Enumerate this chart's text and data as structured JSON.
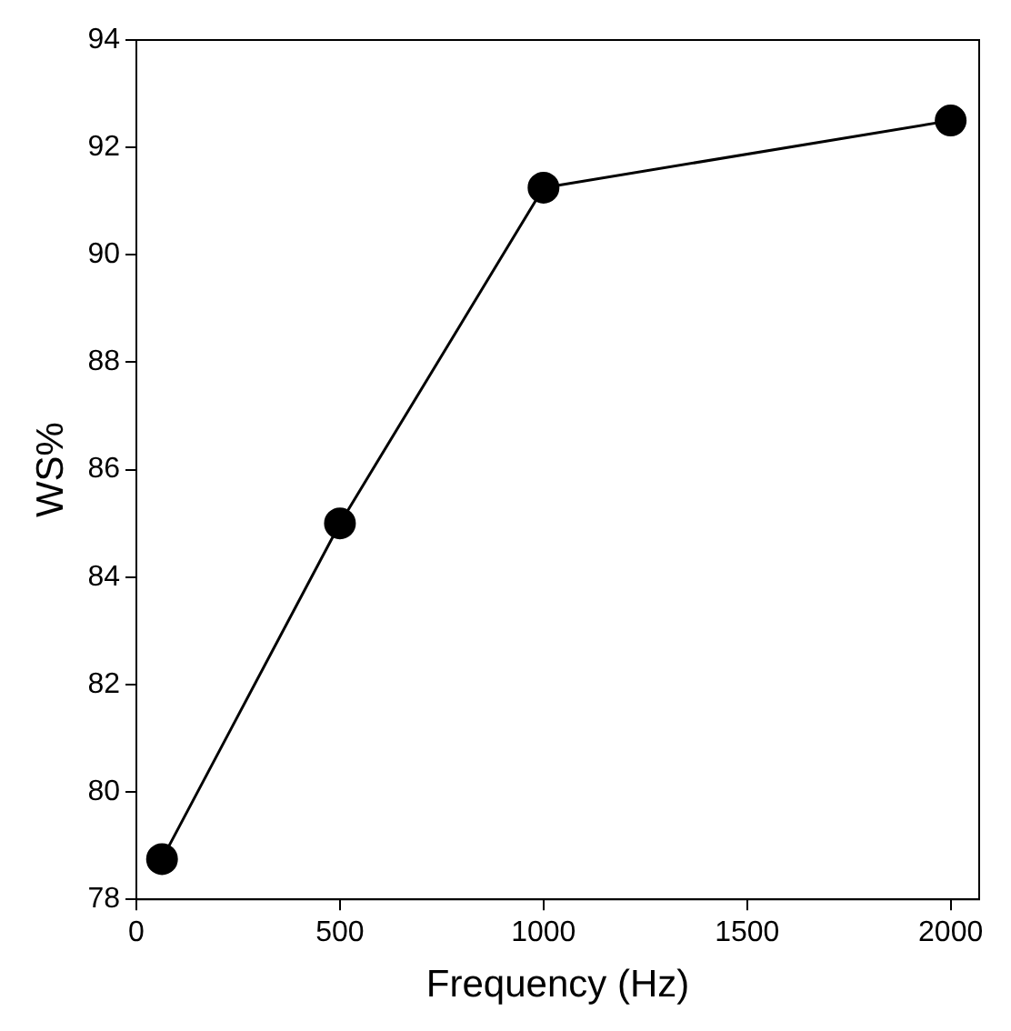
{
  "chart_data": {
    "type": "line",
    "xlabel": "Frequency (Hz)",
    "ylabel": "WS%",
    "x": [
      63,
      500,
      1000,
      2000
    ],
    "series": [
      {
        "color": "#000000",
        "values": [
          78.75,
          85,
          91.25,
          92.5
        ]
      }
    ],
    "xlim": [
      0,
      2070
    ],
    "xticks": [
      0,
      500,
      1000,
      1500,
      2000
    ],
    "ylim": [
      78,
      94
    ],
    "yticks": [
      78,
      80,
      82,
      84,
      86,
      88,
      90,
      92,
      94
    ],
    "grid": false,
    "legend": false,
    "marker": "circle",
    "line_style": "solid"
  }
}
